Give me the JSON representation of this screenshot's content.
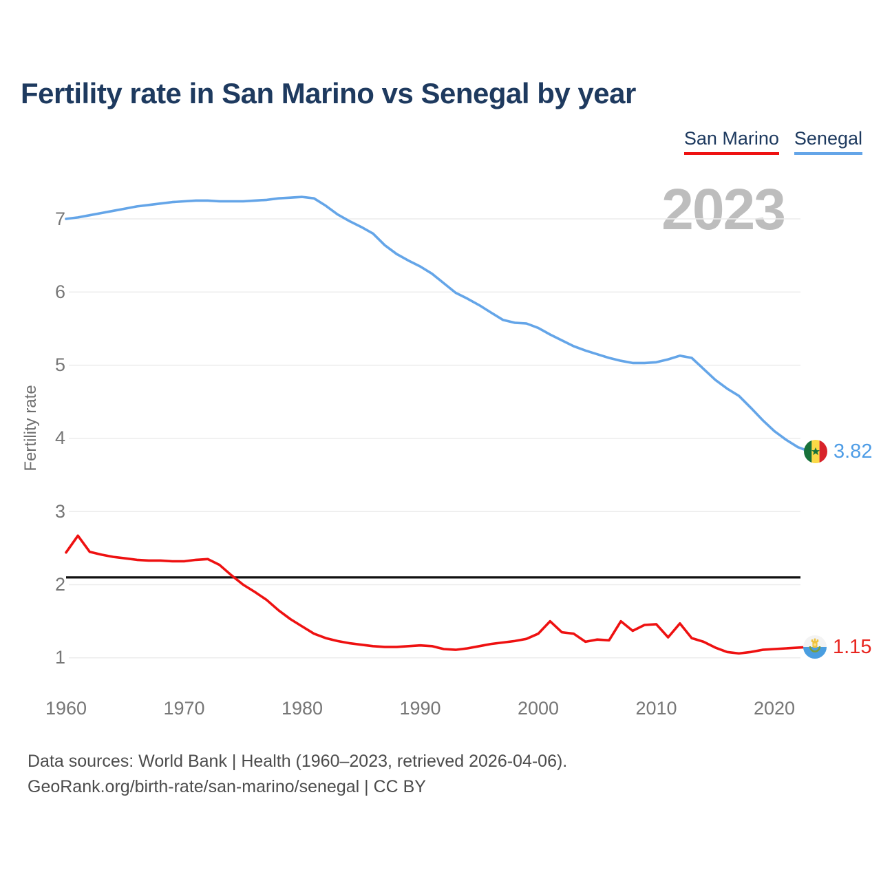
{
  "title": "Fertility rate in San Marino vs Senegal by year",
  "legend": {
    "san_marino": "San Marino",
    "senegal": "Senegal"
  },
  "watermark": "2023",
  "axes": {
    "y": {
      "title": "Fertility rate",
      "ticks": [
        1,
        2,
        3,
        4,
        5,
        6,
        7
      ]
    },
    "x": {
      "ticks": [
        1960,
        1970,
        1980,
        1990,
        2000,
        2010,
        2020
      ]
    }
  },
  "end_labels": {
    "senegal": {
      "value": "3.82",
      "flag": "senegal-flag"
    },
    "san_marino": {
      "value": "1.15",
      "flag": "san-marino-flag"
    }
  },
  "footer": {
    "line1": "Data sources: World Bank | Health (1960–2023, retrieved 2026-04-06).",
    "line2": "GeoRank.org/birth-rate/san-marino/senegal | CC BY"
  },
  "colors": {
    "san_marino": "#ee1111",
    "senegal": "#64a5e8",
    "title_text": "#1e3a5f",
    "grid": "#ececec",
    "tick_text": "#767676",
    "watermark": "#bdbdbd",
    "footer_text": "#4c4c4c",
    "reference_line": "#111111"
  },
  "chart_data": {
    "type": "line",
    "title": "Fertility rate in San Marino vs Senegal by year",
    "xlabel": "",
    "ylabel": "Fertility rate",
    "xlim": [
      1960,
      2023
    ],
    "ylim": [
      1,
      7.35
    ],
    "grid": true,
    "legend_position": "top-right",
    "annotations": {
      "replacement_level_line": 2.1,
      "year_watermark": "2023"
    },
    "x": [
      1960,
      1961,
      1962,
      1963,
      1964,
      1965,
      1966,
      1967,
      1968,
      1969,
      1970,
      1971,
      1972,
      1973,
      1974,
      1975,
      1976,
      1977,
      1978,
      1979,
      1980,
      1981,
      1982,
      1983,
      1984,
      1985,
      1986,
      1987,
      1988,
      1989,
      1990,
      1991,
      1992,
      1993,
      1994,
      1995,
      1996,
      1997,
      1998,
      1999,
      2000,
      2001,
      2002,
      2003,
      2004,
      2005,
      2006,
      2007,
      2008,
      2009,
      2010,
      2011,
      2012,
      2013,
      2014,
      2015,
      2016,
      2017,
      2018,
      2019,
      2020,
      2021,
      2022,
      2023
    ],
    "series": [
      {
        "name": "Senegal",
        "color": "#64a5e8",
        "end_value": 3.82,
        "values": [
          7.0,
          7.02,
          7.05,
          7.08,
          7.11,
          7.14,
          7.17,
          7.19,
          7.21,
          7.23,
          7.24,
          7.25,
          7.25,
          7.24,
          7.24,
          7.24,
          7.25,
          7.26,
          7.28,
          7.29,
          7.3,
          7.28,
          7.18,
          7.06,
          6.97,
          6.89,
          6.8,
          6.64,
          6.52,
          6.43,
          6.35,
          6.25,
          6.12,
          5.99,
          5.91,
          5.82,
          5.72,
          5.62,
          5.58,
          5.57,
          5.51,
          5.42,
          5.34,
          5.26,
          5.2,
          5.15,
          5.1,
          5.06,
          5.03,
          5.03,
          5.04,
          5.08,
          5.13,
          5.1,
          4.95,
          4.8,
          4.68,
          4.58,
          4.42,
          4.25,
          4.1,
          3.98,
          3.88,
          3.82
        ]
      },
      {
        "name": "San Marino",
        "color": "#ee1111",
        "end_value": 1.15,
        "values": [
          2.44,
          2.67,
          2.45,
          2.41,
          2.38,
          2.36,
          2.34,
          2.33,
          2.33,
          2.32,
          2.32,
          2.34,
          2.35,
          2.27,
          2.13,
          2.0,
          1.9,
          1.79,
          1.65,
          1.53,
          1.43,
          1.33,
          1.27,
          1.23,
          1.2,
          1.18,
          1.16,
          1.15,
          1.15,
          1.16,
          1.17,
          1.16,
          1.12,
          1.11,
          1.13,
          1.16,
          1.19,
          1.21,
          1.23,
          1.26,
          1.33,
          1.5,
          1.35,
          1.33,
          1.22,
          1.25,
          1.24,
          1.5,
          1.37,
          1.45,
          1.46,
          1.28,
          1.47,
          1.27,
          1.22,
          1.14,
          1.08,
          1.06,
          1.08,
          1.11,
          1.12,
          1.13,
          1.14,
          1.15
        ]
      }
    ]
  }
}
